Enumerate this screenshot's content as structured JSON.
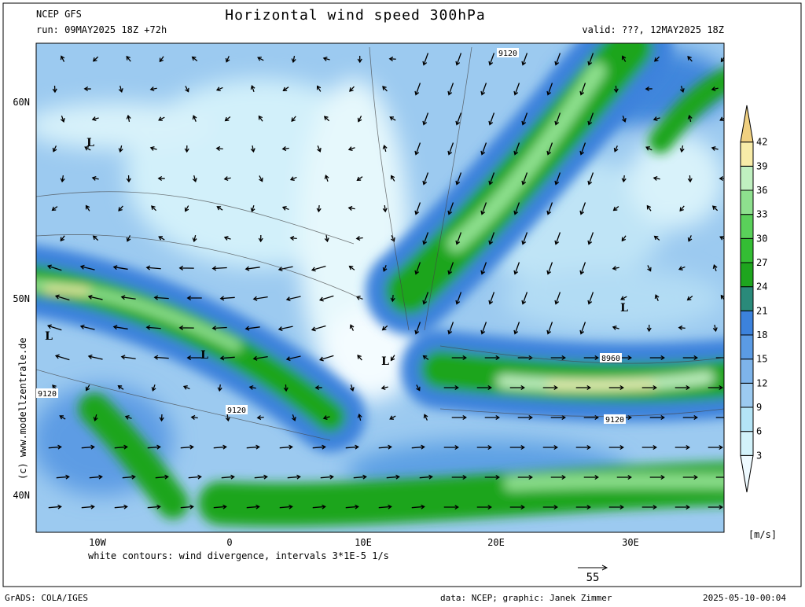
{
  "header": {
    "model": "NCEP GFS",
    "run": "run: 09MAY2025 18Z +72h",
    "title": "Horizontal wind speed 300hPa",
    "valid": "valid: ???, 12MAY2025 18Z"
  },
  "colorbar": {
    "unit": "[m/s]",
    "levels": [
      3,
      6,
      9,
      12,
      15,
      18,
      21,
      24,
      27,
      30,
      33,
      36,
      39,
      42
    ]
  },
  "axes": {
    "lat_labels": [
      "60N",
      "50N",
      "40N"
    ],
    "lon_labels": [
      "10W",
      "0",
      "10E",
      "20E",
      "30E"
    ]
  },
  "map_labels": {
    "lows": [
      "L",
      "L",
      "L",
      "L",
      "L"
    ],
    "contours": [
      "9120",
      "9120",
      "9120",
      "8960",
      "9120"
    ]
  },
  "footer": {
    "note": "white contours: wind divergence, intervals 3*1E-5 1/s",
    "vector_scale": "55",
    "grads": "GrADS: COLA/IGES",
    "credit": "data: NCEP; graphic: Janek Zimmer",
    "timestamp": "2025-05-10-00:04",
    "copyright": "(c) www.modellzentrale.de"
  }
}
